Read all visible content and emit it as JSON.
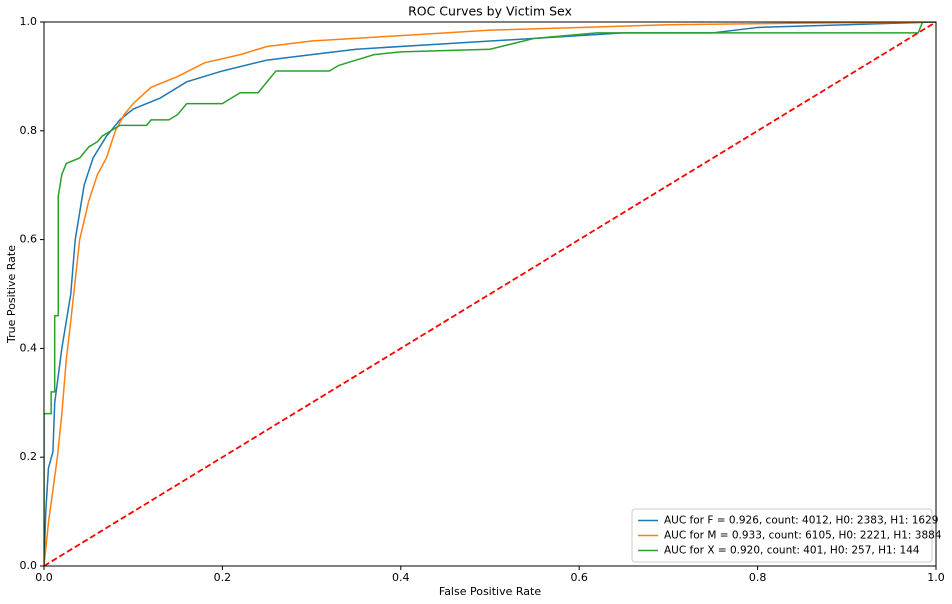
{
  "chart_data": {
    "type": "line",
    "title": "ROC Curves by Victim Sex",
    "xlabel": "False Positive Rate",
    "ylabel": "True Positive Rate",
    "xlim": [
      0,
      1
    ],
    "ylim": [
      0,
      1
    ],
    "xticks": [
      {
        "value": 0,
        "label": "0.0"
      },
      0.2,
      0.4,
      0.6,
      0.8,
      {
        "value": 1,
        "label": "1.0"
      }
    ],
    "yticks": [
      {
        "value": 0,
        "label": "0.0"
      },
      0.2,
      0.4,
      0.6,
      0.8,
      {
        "value": 1,
        "label": "1.0"
      }
    ],
    "grid": false,
    "legend_position": "lower right",
    "series": [
      {
        "name": "AUC for F = 0.926, count: 4012, H0: 2383, H1: 1629",
        "color": "#1f77b4",
        "x": [
          0,
          0.002,
          0.005,
          0.01,
          0.012,
          0.02,
          0.03,
          0.035,
          0.045,
          0.055,
          0.07,
          0.085,
          0.1,
          0.13,
          0.16,
          0.2,
          0.25,
          0.3,
          0.35,
          0.45,
          0.55,
          0.65,
          0.75,
          0.8,
          0.9,
          1
        ],
        "y": [
          0,
          0.1,
          0.18,
          0.21,
          0.3,
          0.4,
          0.5,
          0.6,
          0.7,
          0.75,
          0.79,
          0.82,
          0.84,
          0.86,
          0.89,
          0.91,
          0.93,
          0.94,
          0.95,
          0.96,
          0.97,
          0.98,
          0.98,
          0.99,
          0.995,
          1
        ]
      },
      {
        "name": "AUC for M = 0.933, count: 6105, H0: 2221, H1: 3884",
        "color": "#ff7f0e",
        "x": [
          0,
          0.005,
          0.01,
          0.015,
          0.02,
          0.025,
          0.03,
          0.04,
          0.05,
          0.06,
          0.07,
          0.08,
          0.09,
          0.1,
          0.12,
          0.15,
          0.18,
          0.22,
          0.25,
          0.3,
          0.4,
          0.5,
          0.6,
          0.7,
          0.85,
          1
        ],
        "y": [
          0,
          0.08,
          0.14,
          0.2,
          0.28,
          0.38,
          0.45,
          0.6,
          0.67,
          0.72,
          0.75,
          0.8,
          0.83,
          0.85,
          0.88,
          0.9,
          0.925,
          0.94,
          0.955,
          0.965,
          0.975,
          0.985,
          0.99,
          0.995,
          0.998,
          1
        ]
      },
      {
        "name": "AUC for X = 0.920, count: 401, H0: 257, H1: 144",
        "color": "#2ca02c",
        "x": [
          0,
          0,
          0.008,
          0.008,
          0.012,
          0.012,
          0.016,
          0.016,
          0.02,
          0.025,
          0.04,
          0.05,
          0.06,
          0.065,
          0.075,
          0.085,
          0.115,
          0.12,
          0.14,
          0.15,
          0.16,
          0.2,
          0.21,
          0.22,
          0.24,
          0.25,
          0.26,
          0.32,
          0.33,
          0.35,
          0.37,
          0.4,
          0.5,
          0.55,
          0.62,
          0.98,
          0.985,
          1
        ],
        "y": [
          0,
          0.28,
          0.28,
          0.32,
          0.32,
          0.46,
          0.46,
          0.68,
          0.72,
          0.74,
          0.75,
          0.77,
          0.78,
          0.79,
          0.8,
          0.81,
          0.81,
          0.82,
          0.82,
          0.83,
          0.85,
          0.85,
          0.86,
          0.87,
          0.87,
          0.89,
          0.91,
          0.91,
          0.92,
          0.93,
          0.94,
          0.945,
          0.95,
          0.97,
          0.98,
          0.98,
          1,
          1
        ]
      }
    ],
    "reference_line": {
      "x": [
        0,
        1
      ],
      "y": [
        0,
        1
      ],
      "color": "#ff0000",
      "style": "dashed"
    }
  }
}
